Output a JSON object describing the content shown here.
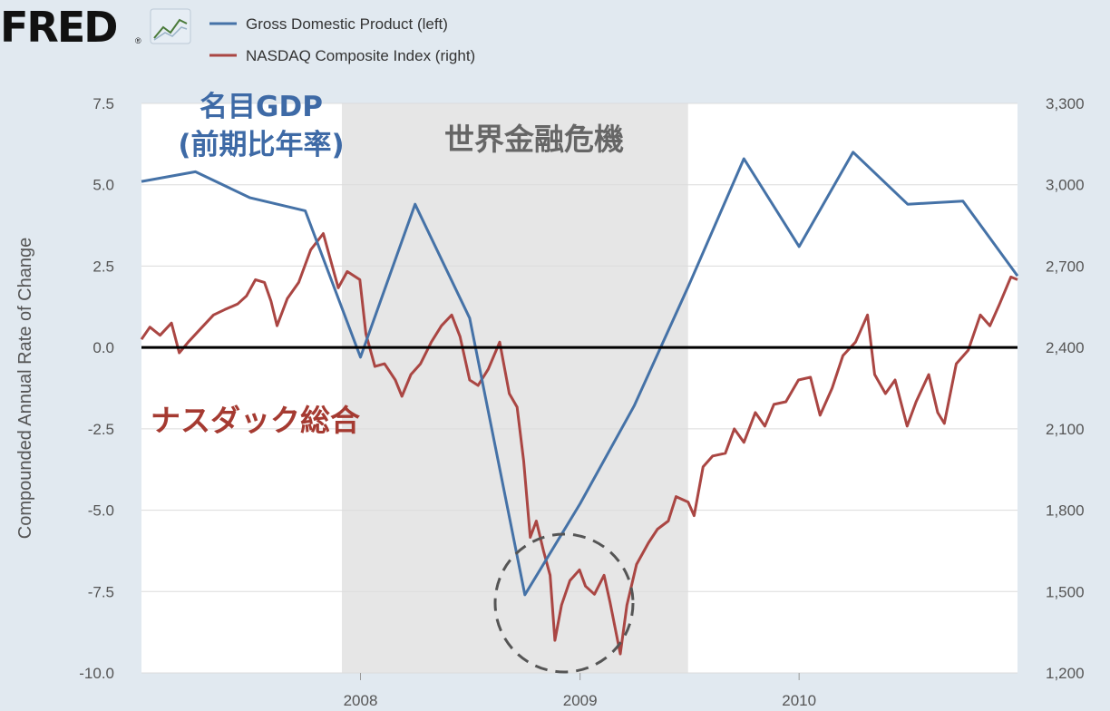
{
  "brand": {
    "logo_text": "FRED",
    "registered": "®"
  },
  "legend": [
    {
      "label": "Gross Domestic Product (left)",
      "color": "#4572a7"
    },
    {
      "label": "NASDAQ Composite Index (right)",
      "color": "#aa4643"
    }
  ],
  "annotations": {
    "gdp_label_line1": "名目GDP",
    "gdp_label_line2": "(前期比年率)",
    "crisis_label": "世界金融危機",
    "nasdaq_label": "ナスダック総合"
  },
  "chart_data": {
    "type": "line",
    "ylabel": "Compounded Annual Rate of Change",
    "x_ticks": [
      "2008",
      "2009",
      "2010"
    ],
    "y_left": {
      "ticks": [
        "7.5",
        "5.0",
        "2.5",
        "0.0",
        "-2.5",
        "-5.0",
        "-7.5",
        "-10.0"
      ],
      "range": [
        -10,
        7.5
      ]
    },
    "y_right": {
      "ticks": [
        "3,300",
        "3,000",
        "2,700",
        "2,400",
        "2,100",
        "1,800",
        "1,500",
        "1,200"
      ],
      "range": [
        1200,
        3300
      ]
    },
    "x_range": [
      "2007-01-01",
      "2010-12-31"
    ],
    "recession_shade": {
      "start": "2007-12-01",
      "end": "2009-06-30",
      "color": "#e6e6e6"
    },
    "series": [
      {
        "name": "Gross Domestic Product (left)",
        "axis": "left",
        "color": "#4572a7",
        "points": [
          [
            "2007-01-01",
            5.1
          ],
          [
            "2007-04-01",
            5.4
          ],
          [
            "2007-07-01",
            4.6
          ],
          [
            "2007-10-01",
            4.2
          ],
          [
            "2008-01-01",
            -0.3
          ],
          [
            "2008-04-01",
            4.4
          ],
          [
            "2008-07-01",
            0.9
          ],
          [
            "2008-10-01",
            -7.6
          ],
          [
            "2009-01-01",
            -4.8
          ],
          [
            "2009-04-01",
            -1.8
          ],
          [
            "2009-07-01",
            1.9
          ],
          [
            "2009-10-01",
            5.8
          ],
          [
            "2010-01-01",
            3.1
          ],
          [
            "2010-04-01",
            6.0
          ],
          [
            "2010-07-01",
            4.4
          ],
          [
            "2010-10-01",
            4.5
          ],
          [
            "2010-12-31",
            2.2
          ]
        ]
      },
      {
        "name": "NASDAQ Composite Index (right)",
        "axis": "right",
        "color": "#aa4643",
        "points": [
          [
            "2007-01-01",
            2430
          ],
          [
            "2007-01-15",
            2475
          ],
          [
            "2007-02-01",
            2445
          ],
          [
            "2007-02-20",
            2490
          ],
          [
            "2007-03-05",
            2380
          ],
          [
            "2007-03-20",
            2420
          ],
          [
            "2007-04-10",
            2470
          ],
          [
            "2007-05-01",
            2520
          ],
          [
            "2007-05-20",
            2540
          ],
          [
            "2007-06-10",
            2560
          ],
          [
            "2007-06-25",
            2590
          ],
          [
            "2007-07-10",
            2650
          ],
          [
            "2007-07-25",
            2640
          ],
          [
            "2007-08-05",
            2570
          ],
          [
            "2007-08-15",
            2480
          ],
          [
            "2007-09-01",
            2580
          ],
          [
            "2007-09-20",
            2640
          ],
          [
            "2007-10-10",
            2760
          ],
          [
            "2007-10-31",
            2820
          ],
          [
            "2007-11-10",
            2740
          ],
          [
            "2007-11-25",
            2620
          ],
          [
            "2007-12-10",
            2680
          ],
          [
            "2007-12-31",
            2650
          ],
          [
            "2008-01-10",
            2450
          ],
          [
            "2008-01-25",
            2330
          ],
          [
            "2008-02-10",
            2340
          ],
          [
            "2008-02-28",
            2280
          ],
          [
            "2008-03-10",
            2220
          ],
          [
            "2008-03-25",
            2300
          ],
          [
            "2008-04-10",
            2340
          ],
          [
            "2008-04-28",
            2420
          ],
          [
            "2008-05-15",
            2480
          ],
          [
            "2008-06-01",
            2520
          ],
          [
            "2008-06-15",
            2440
          ],
          [
            "2008-07-01",
            2280
          ],
          [
            "2008-07-15",
            2260
          ],
          [
            "2008-08-01",
            2320
          ],
          [
            "2008-08-20",
            2420
          ],
          [
            "2008-09-05",
            2230
          ],
          [
            "2008-09-18",
            2180
          ],
          [
            "2008-09-29",
            1980
          ],
          [
            "2008-10-10",
            1700
          ],
          [
            "2008-10-20",
            1760
          ],
          [
            "2008-11-01",
            1650
          ],
          [
            "2008-11-12",
            1560
          ],
          [
            "2008-11-20",
            1320
          ],
          [
            "2008-12-01",
            1450
          ],
          [
            "2008-12-15",
            1540
          ],
          [
            "2008-12-31",
            1580
          ],
          [
            "2009-01-10",
            1520
          ],
          [
            "2009-01-25",
            1490
          ],
          [
            "2009-02-10",
            1560
          ],
          [
            "2009-02-20",
            1460
          ],
          [
            "2009-03-09",
            1270
          ],
          [
            "2009-03-20",
            1450
          ],
          [
            "2009-04-05",
            1600
          ],
          [
            "2009-04-25",
            1680
          ],
          [
            "2009-05-10",
            1730
          ],
          [
            "2009-05-28",
            1760
          ],
          [
            "2009-06-10",
            1850
          ],
          [
            "2009-06-30",
            1830
          ],
          [
            "2009-07-10",
            1780
          ],
          [
            "2009-07-25",
            1960
          ],
          [
            "2009-08-10",
            2000
          ],
          [
            "2009-08-31",
            2010
          ],
          [
            "2009-09-15",
            2100
          ],
          [
            "2009-10-01",
            2050
          ],
          [
            "2009-10-20",
            2160
          ],
          [
            "2009-11-05",
            2110
          ],
          [
            "2009-11-20",
            2190
          ],
          [
            "2009-12-10",
            2200
          ],
          [
            "2009-12-31",
            2280
          ],
          [
            "2010-01-20",
            2290
          ],
          [
            "2010-02-05",
            2150
          ],
          [
            "2010-02-25",
            2250
          ],
          [
            "2010-03-15",
            2370
          ],
          [
            "2010-04-05",
            2420
          ],
          [
            "2010-04-25",
            2520
          ],
          [
            "2010-05-07",
            2300
          ],
          [
            "2010-05-25",
            2230
          ],
          [
            "2010-06-10",
            2280
          ],
          [
            "2010-06-30",
            2110
          ],
          [
            "2010-07-15",
            2200
          ],
          [
            "2010-08-05",
            2300
          ],
          [
            "2010-08-20",
            2160
          ],
          [
            "2010-08-31",
            2120
          ],
          [
            "2010-09-20",
            2340
          ],
          [
            "2010-10-10",
            2390
          ],
          [
            "2010-10-30",
            2520
          ],
          [
            "2010-11-15",
            2480
          ],
          [
            "2010-12-01",
            2560
          ],
          [
            "2010-12-20",
            2660
          ],
          [
            "2010-12-31",
            2650
          ]
        ]
      }
    ]
  }
}
